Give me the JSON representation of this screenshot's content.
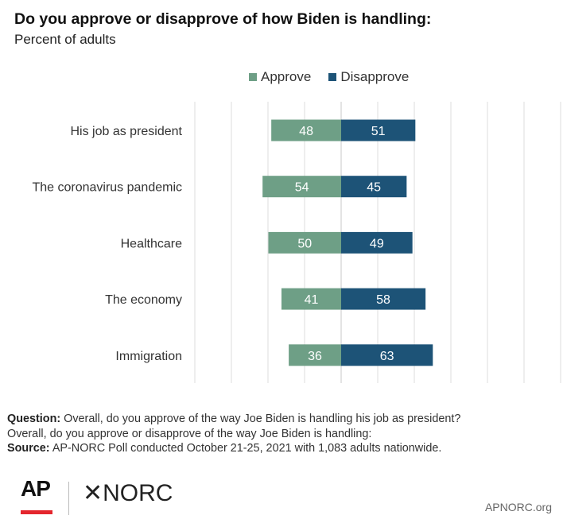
{
  "chart_data": {
    "type": "bar",
    "subtype": "diverging-stacked-horizontal",
    "title": "Do you approve or disapprove of how Biden is handling:",
    "subtitle": "Percent of adults",
    "categories": [
      "His job as president",
      "The coronavirus pandemic",
      "Healthcare",
      "The economy",
      "Immigration"
    ],
    "series": [
      {
        "name": "Approve",
        "color": "#6e9f86",
        "values": [
          48,
          54,
          50,
          41,
          36
        ]
      },
      {
        "name": "Disapprove",
        "color": "#1d5377",
        "values": [
          51,
          45,
          49,
          58,
          63
        ]
      }
    ],
    "legend_position": "top",
    "grid": true
  },
  "notes": {
    "question_label": "Question:",
    "question_line1": "Overall, do you approve of the way Joe Biden is handling his job as president?",
    "question_line2": "Overall, do you approve or disapprove of the way Joe Biden is handling:",
    "source_label": "Source:",
    "source_text": "AP-NORC Poll conducted October 21-25, 2021 with 1,083 adults nationwide."
  },
  "branding": {
    "ap_logo": "AP",
    "norc_logo": "NORC",
    "norc_glyph": "✕",
    "url": "APNORC.org"
  }
}
